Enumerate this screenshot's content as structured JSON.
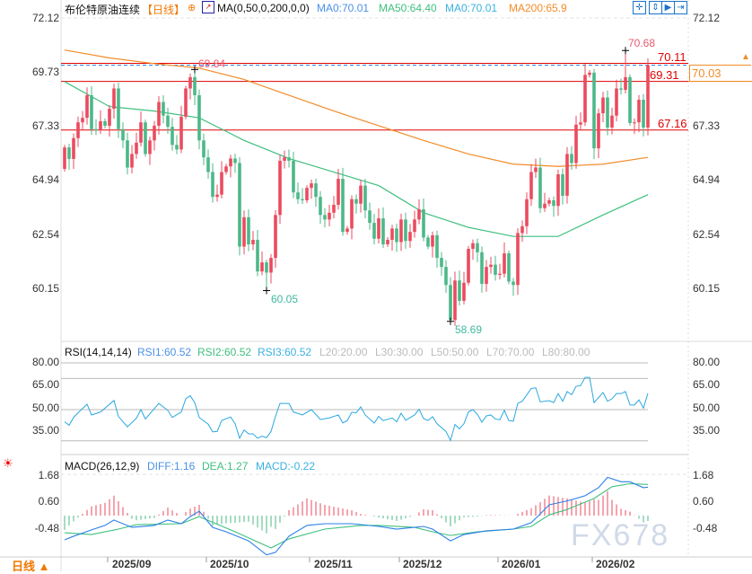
{
  "header": {
    "instrument": "布伦特原油连续",
    "period": "【日线】",
    "indicator": "MA(0,50,0,200,0,0)",
    "ma0_a": "MA0:70.01",
    "ma50": "MA50:64.40",
    "ma0_b": "MA0:70.01",
    "ma200": "MA200:65.9"
  },
  "toolbar": {
    "icons": [
      "crosshair-icon",
      "fit-range-icon",
      "play-range-icon",
      "exit-icon"
    ]
  },
  "colors": {
    "up": "#eb4b5f",
    "down": "#4cb888",
    "ma50": "#3fbf7f",
    "ma200": "#f28c28",
    "level": "#e00000",
    "current": "#1e7be0",
    "rsi": "#2aa8e0",
    "diff": "#2a7fe8",
    "dea": "#3fbf7f"
  },
  "price_axis": {
    "ticks": [
      "72.12",
      "69.73",
      "67.33",
      "64.94",
      "62.54",
      "60.15"
    ]
  },
  "levels": {
    "l1": "70.11",
    "l2": "69.31",
    "l3": "67.16",
    "current": "70.03"
  },
  "annotations": {
    "high1": "69.84",
    "low1": "60.05",
    "low2": "58.69",
    "high2": "70.68"
  },
  "rsi_panel": {
    "title": "RSI(14,14,14)",
    "rsi1": "RSI1:60.52",
    "rsi2": "RSI2:60.52",
    "rsi3": "RSI3:60.52",
    "l20": "L20:20.00",
    "l30": "L30:30.00",
    "l50": "L50:50.00",
    "l70": "L70:70.00",
    "l80": "L80:80.00",
    "ticks": [
      "80.00",
      "65.00",
      "50.00",
      "35.00"
    ]
  },
  "macd_panel": {
    "title": "MACD(26,12,9)",
    "diff": "DIFF:1.16",
    "dea": "DEA:1.27",
    "macd": "MACD:-0.22",
    "ticks": [
      "1.68",
      "0.60",
      "-0.48"
    ]
  },
  "footer": {
    "period_label": "日线 ▲",
    "watermark": "FX678"
  },
  "chart_data": {
    "type": "candlestick",
    "title": "布伦特原油连续",
    "ylim": [
      58.0,
      72.6
    ],
    "first_open": 65.44,
    "close": [
      66.39,
      65.88,
      66.8,
      67.5,
      67.7,
      68.7,
      67.2,
      67.15,
      67.55,
      67.35,
      68.1,
      69.0,
      67.2,
      66.7,
      65.5,
      66.1,
      66.6,
      67.5,
      66.1,
      66.7,
      67.35,
      68.4,
      67.8,
      67.3,
      66.5,
      66.3,
      67.75,
      69.0,
      69.5,
      68.7,
      66.7,
      65.95,
      65.3,
      64.2,
      64.3,
      65.3,
      65.55,
      65.9,
      65.7,
      62.0,
      63.3,
      62.1,
      62.3,
      60.9,
      61.3,
      60.85,
      61.5,
      63.4,
      65.8,
      65.95,
      65.8,
      64.4,
      64.1,
      64.05,
      64.6,
      64.8,
      64.2,
      63.4,
      63.2,
      63.5,
      63.85,
      65.0,
      62.65,
      62.8,
      64.1,
      63.9,
      64.7,
      63.6,
      63.05,
      62.35,
      63.25,
      62.1,
      62.3,
      62.8,
      62.2,
      63.2,
      62.25,
      62.65,
      63.2,
      63.65,
      62.4,
      62.0,
      62.5,
      61.5,
      61.1,
      60.3,
      58.75,
      60.5,
      59.6,
      60.4,
      61.9,
      62.15,
      61.75,
      60.35,
      61.1,
      61.2,
      60.75,
      60.8,
      61.7,
      60.45,
      60.3,
      62.6,
      62.9,
      64.1,
      65.3,
      65.5,
      63.7,
      63.9,
      64.05,
      63.8,
      65.2,
      64.25,
      66.1,
      65.7,
      67.4,
      67.5,
      69.6,
      69.7,
      66.35,
      67.9,
      68.6,
      67.27,
      67.8,
      69.0,
      68.94,
      69.5,
      67.47,
      67.5,
      68.5,
      67.27,
      70.03
    ],
    "extremes": [
      {
        "index": 29,
        "value": 69.84,
        "kind": "high"
      },
      {
        "index": 45,
        "value": 60.05,
        "kind": "low"
      },
      {
        "index": 86,
        "value": 58.69,
        "kind": "low"
      },
      {
        "index": 125,
        "value": 70.68,
        "kind": "high"
      }
    ],
    "ma50_every10": [
      69.3,
      68.2,
      68.0,
      67.7,
      66.7,
      65.9,
      65.3,
      64.7,
      63.5,
      62.85,
      62.45,
      62.45,
      63.4,
      64.3
    ],
    "ma200_every10": [
      70.7,
      70.35,
      70.1,
      69.9,
      69.4,
      68.7,
      68.0,
      67.35,
      66.7,
      66.1,
      65.65,
      65.55,
      65.65,
      65.95
    ],
    "x_ticks": [
      {
        "index": 10,
        "label": "2025/09"
      },
      {
        "index": 32,
        "label": "2025/10"
      },
      {
        "index": 55,
        "label": "2025/11"
      },
      {
        "index": 75,
        "label": "2025/12"
      },
      {
        "index": 97,
        "label": "2026/01"
      },
      {
        "index": 118,
        "label": "2026/02"
      }
    ],
    "rsi": {
      "ylim": [
        20,
        80
      ],
      "levels": [
        80,
        70,
        50,
        30
      ],
      "points": [
        [
          0,
          42.2
        ],
        [
          1,
          40
        ],
        [
          2,
          45
        ],
        [
          3,
          48
        ],
        [
          5,
          53.5
        ],
        [
          6,
          46.6
        ],
        [
          8,
          48.5
        ],
        [
          11,
          55.9
        ],
        [
          12,
          45.6
        ],
        [
          14,
          39
        ],
        [
          16,
          44.5
        ],
        [
          17,
          50
        ],
        [
          18,
          44
        ],
        [
          21,
          54
        ],
        [
          23,
          49.5
        ],
        [
          24,
          45
        ],
        [
          26,
          48.5
        ],
        [
          27,
          57
        ],
        [
          28,
          59
        ],
        [
          29,
          54.5
        ],
        [
          30,
          45
        ],
        [
          32,
          40.7
        ],
        [
          33,
          35.8
        ],
        [
          34,
          36
        ],
        [
          35,
          43
        ],
        [
          37,
          45.3
        ],
        [
          38,
          41
        ],
        [
          39,
          31.7
        ],
        [
          40,
          37
        ],
        [
          41,
          34.5
        ],
        [
          42,
          34.5
        ],
        [
          43,
          31.7
        ],
        [
          44,
          33
        ],
        [
          45,
          32
        ],
        [
          46,
          36
        ],
        [
          47,
          45.7
        ],
        [
          48,
          54
        ],
        [
          50,
          54
        ],
        [
          51,
          48.5
        ],
        [
          53,
          46.6
        ],
        [
          55,
          50
        ],
        [
          57,
          43.7
        ],
        [
          59,
          44.7
        ],
        [
          61,
          46.6
        ],
        [
          62,
          41.5
        ],
        [
          63,
          43
        ],
        [
          64,
          48.3
        ],
        [
          65,
          48
        ],
        [
          66,
          51.8
        ],
        [
          67,
          46.6
        ],
        [
          69,
          41.4
        ],
        [
          70,
          45.7
        ],
        [
          71,
          43
        ],
        [
          73,
          44.7
        ],
        [
          74,
          42.2
        ],
        [
          75,
          47.7
        ],
        [
          76,
          43.2
        ],
        [
          78,
          46.6
        ],
        [
          79,
          50.3
        ],
        [
          80,
          44.3
        ],
        [
          81,
          43
        ],
        [
          82,
          45.5
        ],
        [
          83,
          41
        ],
        [
          85,
          36
        ],
        [
          86,
          30.2
        ],
        [
          87,
          40.5
        ],
        [
          88,
          37.7
        ],
        [
          89,
          41
        ],
        [
          90,
          48.5
        ],
        [
          91,
          50
        ],
        [
          92,
          47
        ],
        [
          93,
          42
        ],
        [
          94,
          46
        ],
        [
          95,
          46.6
        ],
        [
          96,
          44
        ],
        [
          97,
          43.5
        ],
        [
          98,
          49.6
        ],
        [
          99,
          43
        ],
        [
          100,
          42.6
        ],
        [
          101,
          54
        ],
        [
          102,
          55.4
        ],
        [
          104,
          63.6
        ],
        [
          105,
          64
        ],
        [
          106,
          55
        ],
        [
          108,
          55.8
        ],
        [
          109,
          54.5
        ],
        [
          110,
          60.3
        ],
        [
          111,
          55.4
        ],
        [
          112,
          61.6
        ],
        [
          113,
          59.6
        ],
        [
          114,
          65
        ],
        [
          115,
          65.4
        ],
        [
          116,
          70.7
        ],
        [
          117,
          70.7
        ],
        [
          118,
          54.5
        ],
        [
          120,
          61
        ],
        [
          121,
          55.4
        ],
        [
          122,
          57
        ],
        [
          123,
          60.3
        ],
        [
          124,
          60.3
        ],
        [
          125,
          61.6
        ],
        [
          126,
          53
        ],
        [
          127,
          53
        ],
        [
          128,
          56.3
        ],
        [
          129,
          51
        ],
        [
          130,
          60.52
        ]
      ]
    },
    "macd": {
      "diff": [
        [
          0,
          -0.99
        ],
        [
          2,
          -0.84
        ],
        [
          6,
          -0.58
        ],
        [
          9,
          -0.4
        ],
        [
          11,
          -0.18
        ],
        [
          15,
          -0.48
        ],
        [
          20,
          -0.4
        ],
        [
          23,
          -0.18
        ],
        [
          26,
          -0.33
        ],
        [
          28,
          -0.04
        ],
        [
          30,
          0.18
        ],
        [
          33,
          -0.48
        ],
        [
          36,
          -0.66
        ],
        [
          41,
          -1.03
        ],
        [
          45,
          -1.6
        ],
        [
          47,
          -1.5
        ],
        [
          50,
          -0.84
        ],
        [
          54,
          -0.4
        ],
        [
          58,
          -0.33
        ],
        [
          64,
          -0.33
        ],
        [
          70,
          -0.44
        ],
        [
          74,
          -0.55
        ],
        [
          80,
          -0.44
        ],
        [
          82,
          -0.55
        ],
        [
          86,
          -1.03
        ],
        [
          89,
          -0.77
        ],
        [
          94,
          -0.62
        ],
        [
          100,
          -0.55
        ],
        [
          104,
          -0.29
        ],
        [
          106,
          0.07
        ],
        [
          108,
          0.44
        ],
        [
          112,
          0.6
        ],
        [
          116,
          0.81
        ],
        [
          119,
          1.14
        ],
        [
          121,
          1.56
        ],
        [
          124,
          1.38
        ],
        [
          126,
          1.38
        ],
        [
          129,
          1.14
        ],
        [
          130,
          1.16
        ]
      ],
      "dea": [
        [
          0,
          -0.7
        ],
        [
          6,
          -0.77
        ],
        [
          12,
          -0.55
        ],
        [
          16,
          -0.37
        ],
        [
          26,
          -0.33
        ],
        [
          30,
          -0.04
        ],
        [
          38,
          -0.66
        ],
        [
          46,
          -1.32
        ],
        [
          50,
          -0.95
        ],
        [
          58,
          -0.55
        ],
        [
          66,
          -0.4
        ],
        [
          70,
          -0.4
        ],
        [
          78,
          -0.48
        ],
        [
          82,
          -0.66
        ],
        [
          86,
          -0.81
        ],
        [
          92,
          -0.66
        ],
        [
          100,
          -0.55
        ],
        [
          104,
          -0.44
        ],
        [
          108,
          0.03
        ],
        [
          112,
          0.25
        ],
        [
          118,
          0.7
        ],
        [
          122,
          1.18
        ],
        [
          126,
          1.3
        ],
        [
          130,
          1.27
        ]
      ]
    }
  }
}
